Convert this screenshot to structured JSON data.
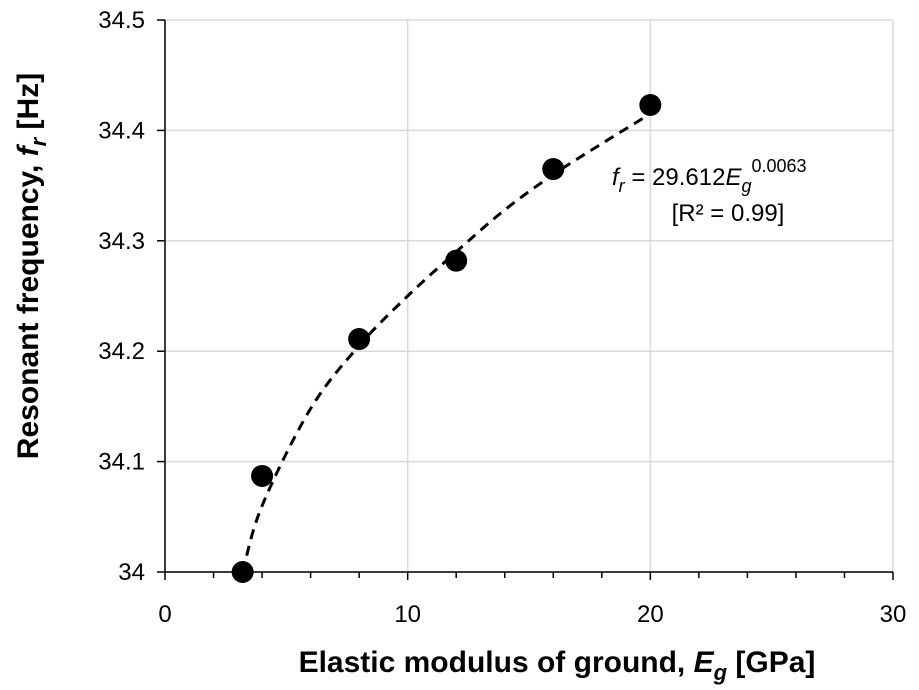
{
  "chart_data": {
    "type": "scatter",
    "x_label": [
      "Elastic modulus of ground, ",
      "E",
      "g",
      " [GPa]"
    ],
    "y_label": [
      "Resonant frequency, ",
      "f",
      "r",
      " [Hz]"
    ],
    "x": [
      3.2,
      4,
      8,
      12,
      16,
      20
    ],
    "values": [
      34.0,
      34.087,
      34.211,
      34.282,
      34.365,
      34.423
    ],
    "color": "#000000",
    "trendline": {
      "x": [
        3.2,
        4,
        6,
        8,
        10,
        12,
        14,
        16,
        18,
        20
      ],
      "y": [
        34.0,
        34.06,
        34.148,
        34.205,
        34.25,
        34.29,
        34.328,
        34.36,
        34.388,
        34.415
      ],
      "dashed": true
    },
    "annotation": {
      "equation": [
        "f",
        "r",
        " = 29.612",
        "E",
        "g",
        "0.0063"
      ],
      "r2": "[R² = 0.99]"
    },
    "xlim": [
      0,
      30
    ],
    "xticks": [
      0,
      10,
      20,
      30
    ],
    "xminorticks": [
      2,
      4,
      6,
      8,
      12,
      14,
      16,
      18,
      22,
      24,
      26,
      28
    ],
    "ylim": [
      34,
      34.5
    ],
    "yticks": [
      34,
      34.1,
      34.2,
      34.3,
      34.4,
      34.5
    ],
    "grid": true
  }
}
